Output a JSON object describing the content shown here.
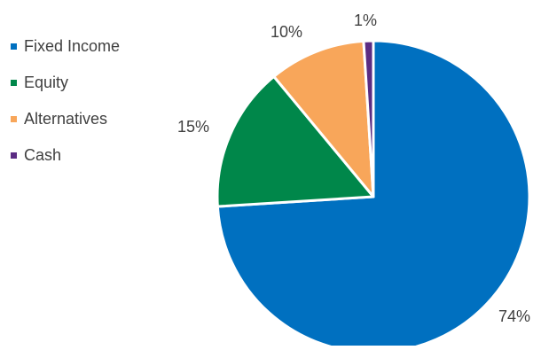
{
  "chart_data": {
    "type": "pie",
    "title": "",
    "legend_position": "left",
    "start_angle_deg": 0,
    "direction": "clockwise",
    "slices": [
      {
        "label": "Fixed Income",
        "value": 74,
        "display": "74%",
        "color": "#0070C0"
      },
      {
        "label": "Equity",
        "value": 15,
        "display": "15%",
        "color": "#00874A"
      },
      {
        "label": "Alternatives",
        "value": 10,
        "display": "10%",
        "color": "#F8A65A"
      },
      {
        "label": "Cash",
        "value": 1,
        "display": "1%",
        "color": "#5B2C83"
      }
    ]
  }
}
